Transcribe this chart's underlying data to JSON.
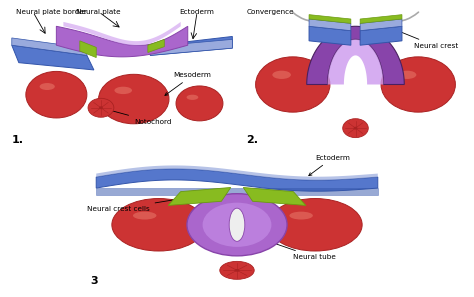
{
  "background_color": "#ffffff",
  "border_color": "#555555",
  "colors": {
    "purple_dark": "#8844aa",
    "purple_mid": "#aa66cc",
    "purple_light": "#cc99ee",
    "blue_dark": "#3355aa",
    "blue_mid": "#5577cc",
    "blue_light": "#99aadd",
    "green_dark": "#6a9a10",
    "green_mid": "#88bb20",
    "green_light": "#aacc44",
    "red_dark": "#aa2222",
    "red_mid": "#cc3333",
    "red_light": "#ee6655",
    "gray_arrow": "#aaaaaa",
    "white": "#ffffff",
    "bg": "#f8f8f8"
  },
  "panel1": {
    "number": "1.",
    "labels": {
      "neural_plate_border": "Neural plate border",
      "neural_plate": "Neural plate",
      "ectoderm": "Ectoderm",
      "mesoderm": "Mesoderm",
      "notochord": "Notochord"
    }
  },
  "panel2": {
    "number": "2.",
    "labels": {
      "convergence": "Convergence",
      "neural_crest": "Neural crest"
    }
  },
  "panel3": {
    "number": "3",
    "labels": {
      "ectoderm": "Ectoderm",
      "neural_crest_cells": "Neural crest cells",
      "neural_tube": "Neural tube"
    }
  }
}
